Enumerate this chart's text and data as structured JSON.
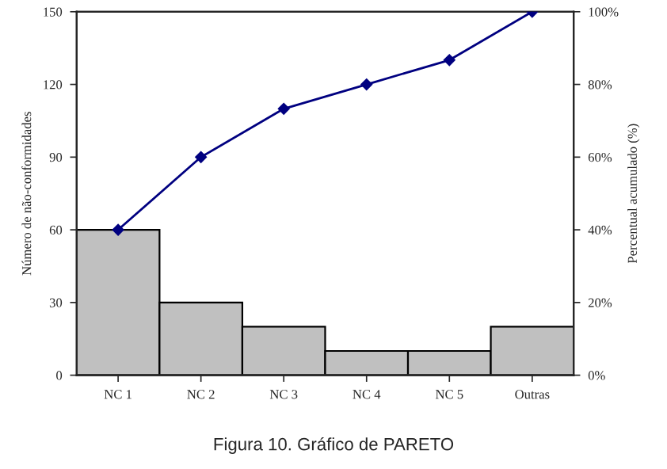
{
  "chart_data": {
    "type": "bar",
    "categories": [
      "NC 1",
      "NC 2",
      "NC 3",
      "NC 4",
      "NC 5",
      "Outras"
    ],
    "series": [
      {
        "color": "#c0c0c0",
        "values": [
          60,
          30,
          20,
          10,
          10,
          20
        ]
      },
      {
        "type": "line",
        "axis": "y2",
        "color": "#000080",
        "marker": "diamond",
        "values": [
          40,
          60,
          73.3,
          80,
          86.7,
          100
        ]
      }
    ],
    "ylabel": "Número de não-conformidades",
    "y2label": "Percentual acumulado (%)",
    "ylim": [
      0,
      150
    ],
    "yticks": [
      0,
      30,
      60,
      90,
      120,
      150
    ],
    "y2lim": [
      0,
      100
    ],
    "y2ticks": [
      {
        "value": 0,
        "label": "0%"
      },
      {
        "value": 20,
        "label": "20%"
      },
      {
        "value": 40,
        "label": "40%"
      },
      {
        "value": 60,
        "label": "60%"
      },
      {
        "value": 80,
        "label": "80%"
      },
      {
        "value": 100,
        "label": "100%"
      }
    ],
    "annotations": [
      "Figura 10. Gráfico de PARETO"
    ],
    "grid": false,
    "legend": false
  }
}
